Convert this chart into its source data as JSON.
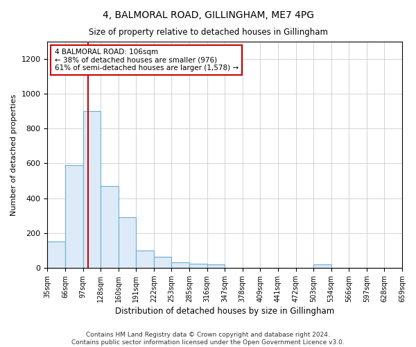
{
  "title": "4, BALMORAL ROAD, GILLINGHAM, ME7 4PG",
  "subtitle": "Size of property relative to detached houses in Gillingham",
  "xlabel": "Distribution of detached houses by size in Gillingham",
  "ylabel": "Number of detached properties",
  "bar_labels": [
    "35sqm",
    "66sqm",
    "97sqm",
    "128sqm",
    "160sqm",
    "191sqm",
    "222sqm",
    "253sqm",
    "285sqm",
    "316sqm",
    "347sqm",
    "378sqm",
    "409sqm",
    "441sqm",
    "472sqm",
    "503sqm",
    "534sqm",
    "566sqm",
    "597sqm",
    "628sqm",
    "659sqm"
  ],
  "bar_heights": [
    150,
    590,
    900,
    470,
    290,
    100,
    65,
    30,
    25,
    20,
    0,
    0,
    0,
    0,
    0,
    20,
    0,
    0,
    0,
    0
  ],
  "bar_color": "#ddeaf7",
  "bar_edge_color": "#6aaed6",
  "vline_color": "#cc0000",
  "vline_x": 2.3,
  "annotation_text_line1": "4 BALMORAL ROAD: 106sqm",
  "annotation_text_line2": "← 38% of detached houses are smaller (976)",
  "annotation_text_line3": "61% of semi-detached houses are larger (1,578) →",
  "annotation_color": "#cc0000",
  "ylim": [
    0,
    1300
  ],
  "yticks": [
    0,
    200,
    400,
    600,
    800,
    1000,
    1200
  ],
  "footer1": "Contains HM Land Registry data © Crown copyright and database right 2024.",
  "footer2": "Contains public sector information licensed under the Open Government Licence v3.0.",
  "bg_color": "#ffffff",
  "grid_color": "#cccccc"
}
